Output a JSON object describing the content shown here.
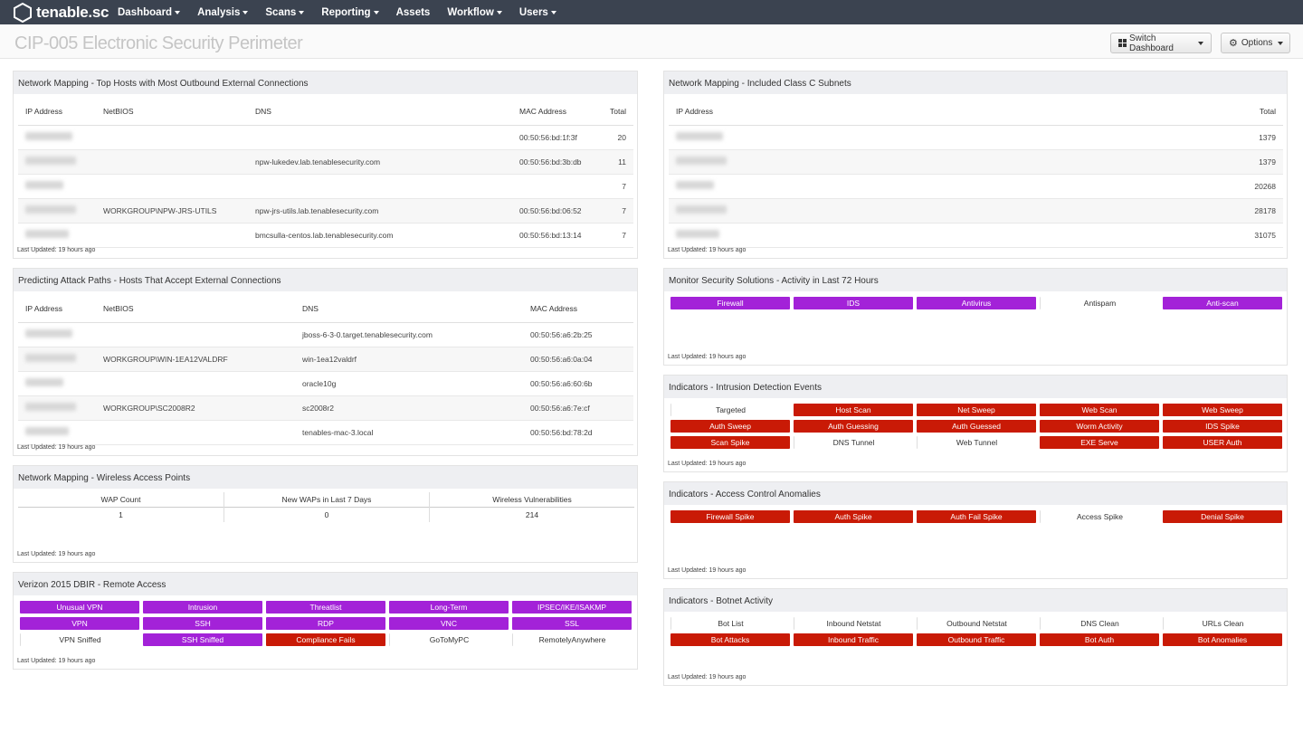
{
  "nav": {
    "brand": "tenable.sc",
    "menu": [
      "Dashboard",
      "Analysis",
      "Scans",
      "Reporting",
      "Assets",
      "Workflow",
      "Users"
    ],
    "menu_has_caret": [
      true,
      true,
      true,
      true,
      false,
      true,
      true
    ]
  },
  "header": {
    "title": "CIP-005 Electronic Security Perimeter",
    "switch_label": "Switch Dashboard",
    "options_label": "Options"
  },
  "colors": {
    "purple": "#a322d8",
    "red": "#c91a06",
    "nav": "#3b4350"
  },
  "last_updated": "Last Updated: 19 hours ago",
  "outbound": {
    "title": "Network Mapping - Top Hosts with Most Outbound External Connections",
    "columns": [
      "IP Address",
      "NetBIOS",
      "DNS",
      "MAC Address",
      "Total"
    ],
    "rows": [
      {
        "netbios": "",
        "dns": "",
        "mac": "00:50:56:bd:1f:3f",
        "total": "20"
      },
      {
        "netbios": "",
        "dns": "npw-lukedev.lab.tenablesecurity.com",
        "mac": "00:50:56:bd:3b:db",
        "total": "11"
      },
      {
        "netbios": "",
        "dns": "",
        "mac": "",
        "total": "7"
      },
      {
        "netbios": "WORKGROUP\\NPW-JRS-UTILS",
        "dns": "npw-jrs-utils.lab.tenablesecurity.com",
        "mac": "00:50:56:bd:06:52",
        "total": "7"
      },
      {
        "netbios": "",
        "dns": "bmcsulla-centos.lab.tenablesecurity.com",
        "mac": "00:50:56:bd:13:14",
        "total": "7"
      }
    ]
  },
  "attack": {
    "title": "Predicting Attack Paths - Hosts That Accept External Connections",
    "columns": [
      "IP Address",
      "NetBIOS",
      "DNS",
      "MAC Address"
    ],
    "rows": [
      {
        "netbios": "",
        "dns": "jboss-6-3-0.target.tenablesecurity.com",
        "mac": "00:50:56:a6:2b:25"
      },
      {
        "netbios": "WORKGROUP\\WIN-1EA12VALDRF",
        "dns": "win-1ea12valdrf",
        "mac": "00:50:56:a6:0a:04"
      },
      {
        "netbios": "",
        "dns": "oracle10g",
        "mac": "00:50:56:a6:60:6b"
      },
      {
        "netbios": "WORKGROUP\\SC2008R2",
        "dns": "sc2008r2",
        "mac": "00:50:56:a6:7e:cf"
      },
      {
        "netbios": "",
        "dns": "tenables-mac-3.local",
        "mac": "00:50:56:bd:78:2d"
      }
    ]
  },
  "wap": {
    "title": "Network Mapping - Wireless Access Points",
    "headers": [
      "WAP Count",
      "New WAPs in Last 7 Days",
      "Wireless Vulnerabilities"
    ],
    "values": [
      "1",
      "0",
      "214"
    ]
  },
  "dbir": {
    "title": "Verizon 2015 DBIR - Remote Access",
    "rows": [
      [
        [
          "Unusual VPN",
          "purple"
        ],
        [
          "Intrusion",
          "purple"
        ],
        [
          "Threatlist",
          "purple"
        ],
        [
          "Long-Term",
          "purple"
        ],
        [
          "IPSEC/IKE/ISAKMP",
          "purple"
        ]
      ],
      [
        [
          "VPN",
          "purple"
        ],
        [
          "SSH",
          "purple"
        ],
        [
          "RDP",
          "purple"
        ],
        [
          "VNC",
          "purple"
        ],
        [
          "SSL",
          "purple"
        ]
      ],
      [
        [
          "VPN Sniffed",
          "none"
        ],
        [
          "SSH Sniffed",
          "purple"
        ],
        [
          "Compliance Fails",
          "red"
        ],
        [
          "GoToMyPC",
          "none"
        ],
        [
          "RemotelyAnywhere",
          "none"
        ]
      ]
    ]
  },
  "subnets": {
    "title": "Network Mapping - Included Class C Subnets",
    "columns": [
      "IP Address",
      "Total"
    ],
    "totals": [
      "1379",
      "1379",
      "20268",
      "28178",
      "31075"
    ]
  },
  "monitor": {
    "title": "Monitor Security Solutions - Activity in Last 72 Hours",
    "rows": [
      [
        [
          "Firewall",
          "purple"
        ],
        [
          "IDS",
          "purple"
        ],
        [
          "Antivirus",
          "purple"
        ],
        [
          "Antispam",
          "none"
        ],
        [
          "Anti-scan",
          "purple"
        ]
      ]
    ]
  },
  "ids": {
    "title": "Indicators - Intrusion Detection Events",
    "rows": [
      [
        [
          "Targeted",
          "none"
        ],
        [
          "Host Scan",
          "red"
        ],
        [
          "Net Sweep",
          "red"
        ],
        [
          "Web Scan",
          "red"
        ],
        [
          "Web Sweep",
          "red"
        ]
      ],
      [
        [
          "Auth Sweep",
          "red"
        ],
        [
          "Auth Guessing",
          "red"
        ],
        [
          "Auth Guessed",
          "red"
        ],
        [
          "Worm Activity",
          "red"
        ],
        [
          "IDS Spike",
          "red"
        ]
      ],
      [
        [
          "Scan Spike",
          "red"
        ],
        [
          "DNS Tunnel",
          "none"
        ],
        [
          "Web Tunnel",
          "none"
        ],
        [
          "EXE Serve",
          "red"
        ],
        [
          "USER Auth",
          "red"
        ]
      ]
    ]
  },
  "access": {
    "title": "Indicators - Access Control Anomalies",
    "rows": [
      [
        [
          "Firewall Spike",
          "red"
        ],
        [
          "Auth Spike",
          "red"
        ],
        [
          "Auth Fail Spike",
          "red"
        ],
        [
          "Access Spike",
          "none"
        ],
        [
          "Denial Spike",
          "red"
        ]
      ]
    ]
  },
  "botnet": {
    "title": "Indicators - Botnet Activity",
    "rows": [
      [
        [
          "Bot List",
          "none"
        ],
        [
          "Inbound Netstat",
          "none"
        ],
        [
          "Outbound Netstat",
          "none"
        ],
        [
          "DNS Clean",
          "none"
        ],
        [
          "URLs Clean",
          "none"
        ]
      ],
      [
        [
          "Bot Attacks",
          "red"
        ],
        [
          "Inbound Traffic",
          "red"
        ],
        [
          "Outbound Traffic",
          "red"
        ],
        [
          "Bot Auth",
          "red"
        ],
        [
          "Bot Anomalies",
          "red"
        ]
      ]
    ]
  }
}
